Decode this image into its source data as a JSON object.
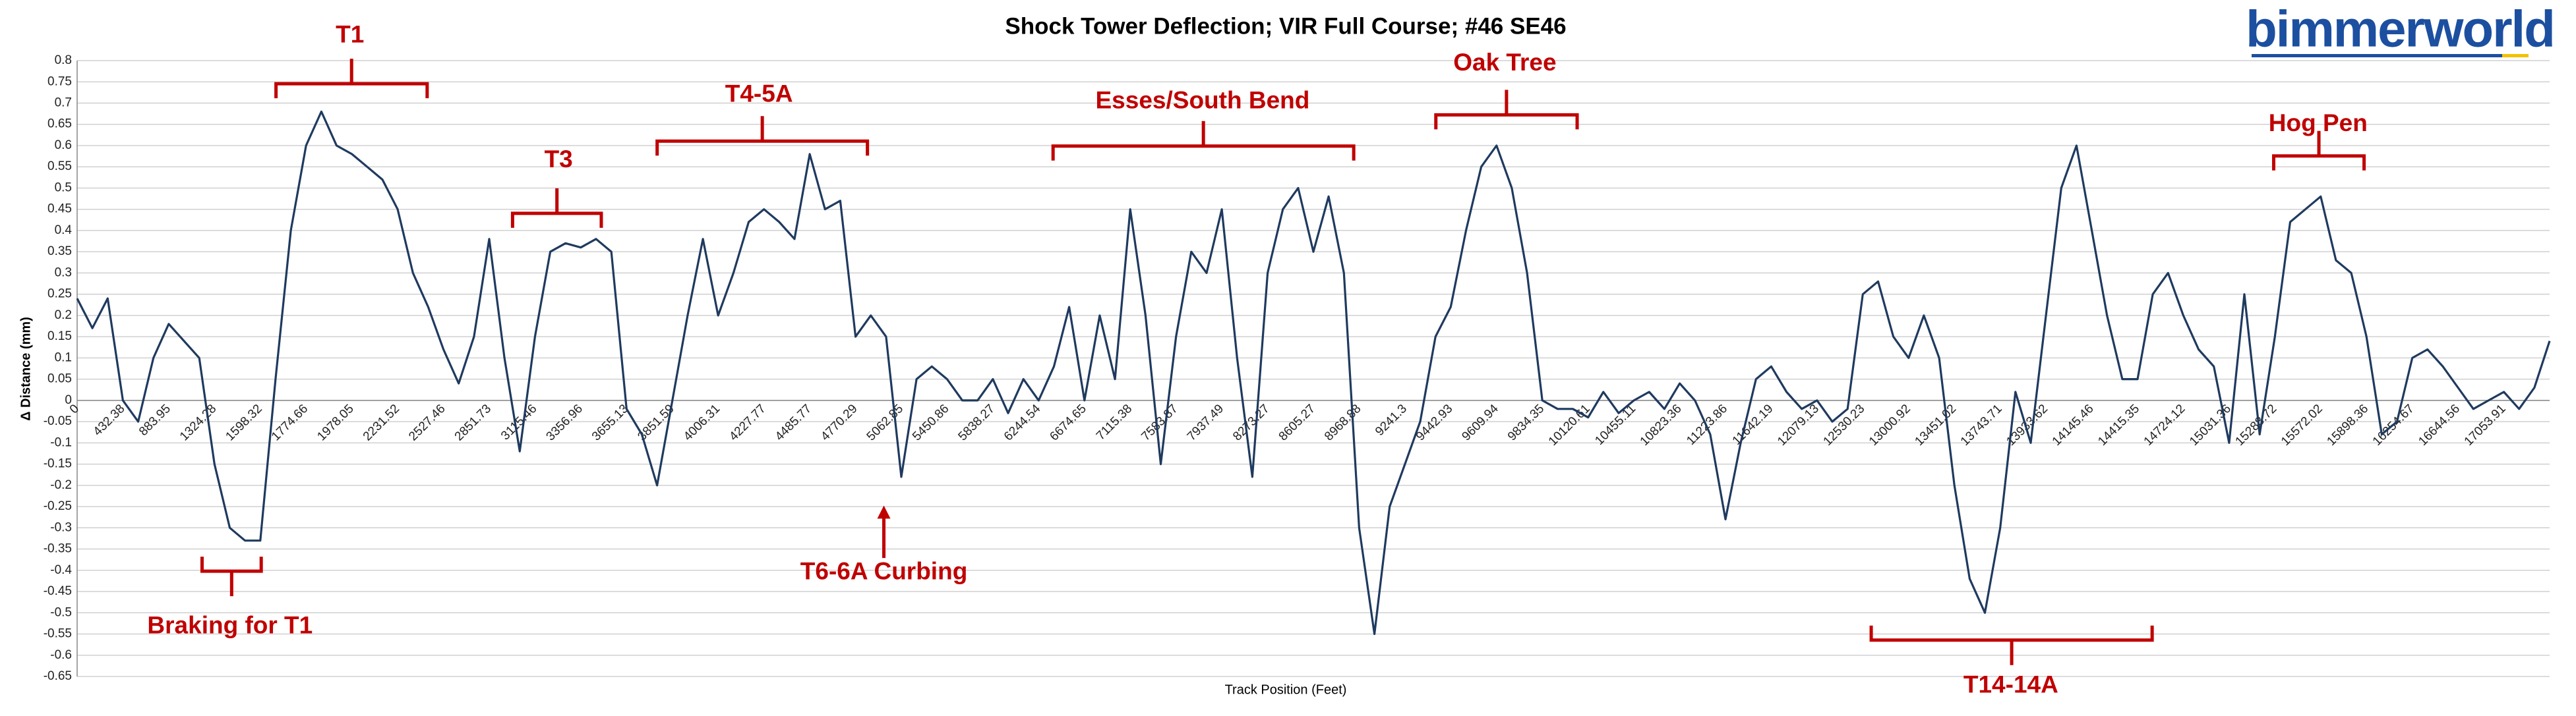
{
  "chart_data": {
    "type": "line",
    "title": "Shock Tower Deflection; VIR Full Course; #46 SE46",
    "logo": "bimmerworld",
    "x_label": "Track Position (Feet)",
    "y_label": "Δ Distance (mm)",
    "color": "#1f3a5f",
    "grid": true,
    "ylim": [
      -0.65,
      0.8
    ],
    "yticks": [
      0.8,
      0.75,
      0.7,
      0.65,
      0.6,
      0.55,
      0.5,
      0.45,
      0.4,
      0.35,
      0.3,
      0.25,
      0.2,
      0.15,
      0.1,
      0.05,
      0,
      -0.05,
      -0.1,
      -0.15,
      -0.2,
      -0.25,
      -0.3,
      -0.35,
      -0.4,
      -0.45,
      -0.5,
      -0.55,
      -0.6,
      -0.65
    ],
    "categories": [
      "0",
      null,
      null,
      "432.38",
      null,
      null,
      "883.95",
      null,
      null,
      "1324.28",
      null,
      null,
      "1598.32",
      null,
      null,
      "1774.66",
      null,
      null,
      "1978.05",
      null,
      null,
      "2231.52",
      null,
      null,
      "2527.46",
      null,
      null,
      "2851.73",
      null,
      null,
      "3115.46",
      null,
      null,
      "3356.96",
      null,
      null,
      "3655.13",
      null,
      null,
      "3851.59",
      null,
      null,
      "4006.31",
      null,
      null,
      "4227.77",
      null,
      null,
      "4485.77",
      null,
      null,
      "4770.29",
      null,
      null,
      "5062.85",
      null,
      null,
      "5450.86",
      null,
      null,
      "5838.27",
      null,
      null,
      "6244.54",
      null,
      null,
      "6674.65",
      null,
      null,
      "7115.38",
      null,
      null,
      "7583.87",
      null,
      null,
      "7937.49",
      null,
      null,
      "8273.27",
      null,
      null,
      "8605.27",
      null,
      null,
      "8968.88",
      null,
      null,
      "9241.3",
      null,
      null,
      "9442.93",
      null,
      null,
      "9609.94",
      null,
      null,
      "9834.35",
      null,
      null,
      "10120.61",
      null,
      null,
      "10455.11",
      null,
      null,
      "10823.36",
      null,
      null,
      "11223.86",
      null,
      null,
      "11642.19",
      null,
      null,
      "12079.13",
      null,
      null,
      "12530.23",
      null,
      null,
      "13000.92",
      null,
      null,
      "13451.02",
      null,
      null,
      "13743.71",
      null,
      null,
      "13933.62",
      null,
      null,
      "14145.46",
      null,
      null,
      "14415.35",
      null,
      null,
      "14724.12",
      null,
      null,
      "15031.36",
      null,
      null,
      "15288.72",
      null,
      null,
      "15572.02",
      null,
      null,
      "15898.36",
      null,
      null,
      "16254.67",
      null,
      null,
      "16644.56",
      null,
      null,
      "17053.91",
      null,
      null,
      null
    ],
    "values": [
      0.24,
      0.17,
      0.24,
      0.0,
      -0.05,
      0.1,
      0.18,
      0.14,
      0.1,
      -0.15,
      -0.3,
      -0.33,
      -0.33,
      0.05,
      0.4,
      0.6,
      0.68,
      0.6,
      0.58,
      0.55,
      0.52,
      0.45,
      0.3,
      0.22,
      0.12,
      0.04,
      0.15,
      0.38,
      0.1,
      -0.12,
      0.15,
      0.35,
      0.37,
      0.36,
      0.38,
      0.35,
      -0.02,
      -0.08,
      -0.2,
      0.0,
      0.2,
      0.38,
      0.2,
      0.3,
      0.42,
      0.45,
      0.42,
      0.38,
      0.58,
      0.45,
      0.47,
      0.15,
      0.2,
      0.15,
      -0.18,
      0.05,
      0.08,
      0.05,
      0,
      0,
      0.05,
      -0.03,
      0.05,
      0,
      0.08,
      0.22,
      0,
      0.2,
      0.05,
      0.45,
      0.2,
      -0.15,
      0.15,
      0.35,
      0.3,
      0.45,
      0.1,
      -0.18,
      0.3,
      0.45,
      0.5,
      0.35,
      0.48,
      0.3,
      -0.3,
      -0.55,
      -0.25,
      -0.15,
      -0.05,
      0.15,
      0.22,
      0.4,
      0.55,
      0.6,
      0.5,
      0.3,
      0,
      -0.02,
      -0.02,
      -0.04,
      0.02,
      -0.03,
      0,
      0.02,
      -0.02,
      0.04,
      0,
      -0.08,
      -0.28,
      -0.1,
      0.05,
      0.08,
      0.02,
      -0.02,
      0,
      -0.05,
      -0.02,
      0.25,
      0.28,
      0.15,
      0.1,
      0.2,
      0.1,
      -0.2,
      -0.42,
      -0.5,
      -0.3,
      0.02,
      -0.1,
      0.2,
      0.5,
      0.6,
      0.4,
      0.2,
      0.05,
      0.05,
      0.25,
      0.3,
      0.2,
      0.12,
      0.08,
      -0.1,
      0.25,
      -0.08,
      0.15,
      0.42,
      0.45,
      0.48,
      0.33,
      0.3,
      0.15,
      -0.08,
      -0.05,
      0.1,
      0.12,
      0.08,
      0.03,
      -0.02,
      0,
      0.02,
      -0.02,
      0.03,
      0.14
    ],
    "annotations": [
      {
        "text": "T1"
      },
      {
        "text": "Braking for T1"
      },
      {
        "text": "T3"
      },
      {
        "text": "T4-5A"
      },
      {
        "text": "T6-6A Curbing"
      },
      {
        "text": "Esses/South Bend"
      },
      {
        "text": "Oak Tree"
      },
      {
        "text": "Hog Pen"
      },
      {
        "text": "T14-14A"
      }
    ]
  }
}
